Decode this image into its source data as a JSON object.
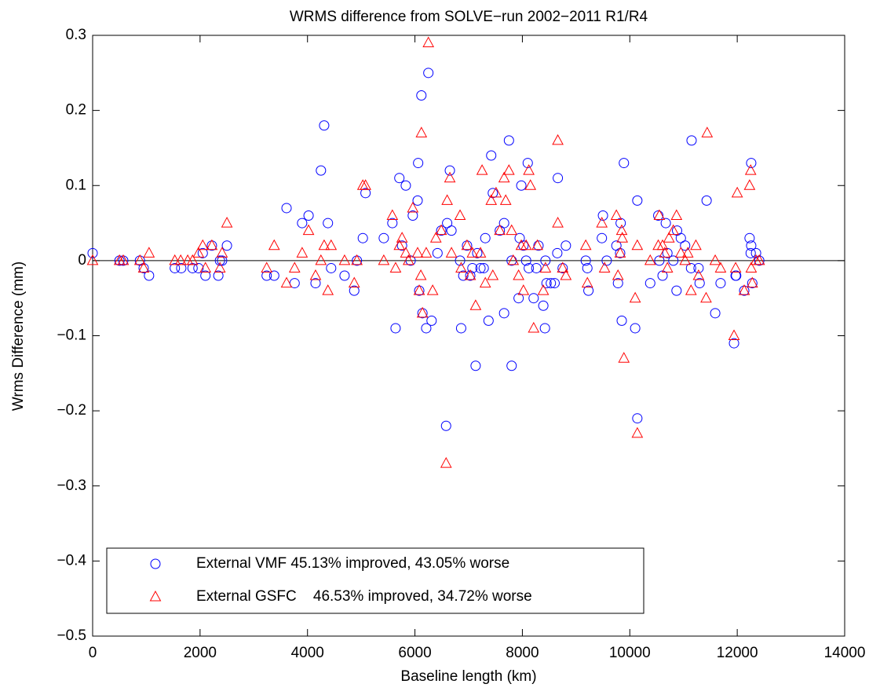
{
  "chart_data": {
    "type": "scatter",
    "title": "WRMS difference from SOLVE−run 2002−2011 R1/R4",
    "x_label": "Baseline length (km)",
    "y_label": "Wrms Difference (mm)",
    "xlim": [
      0,
      14000
    ],
    "ylim": [
      -0.5,
      0.3
    ],
    "xticks": [
      0,
      2000,
      4000,
      6000,
      8000,
      10000,
      12000,
      14000
    ],
    "yticks": [
      {
        "value": -0.5,
        "label": "−0.5"
      },
      {
        "value": -0.4,
        "label": "−0.4"
      },
      {
        "value": -0.3,
        "label": "−0.3"
      },
      {
        "value": -0.2,
        "label": "−0.2"
      },
      {
        "value": -0.1,
        "label": "−0.1"
      },
      0,
      0.1,
      0.2,
      0.3
    ],
    "hline": 0,
    "legend": "lower left",
    "grid": false,
    "series": [
      {
        "name": "External VMF 45.13% improved, 43.05% worse",
        "color": "#0000ff",
        "marker": "circle",
        "x": [
          0,
          500,
          570,
          880,
          950,
          1050,
          1530,
          1650,
          1860,
          1970,
          2050,
          2100,
          2220,
          2340,
          2370,
          2410,
          2500,
          3240,
          3380,
          3610,
          3760,
          3900,
          4020,
          4150,
          4250,
          4310,
          4380,
          4440,
          4690,
          4870,
          4920,
          5030,
          5080,
          5420,
          5580,
          5640,
          5710,
          5760,
          5830,
          5920,
          5960,
          6050,
          6060,
          6080,
          6120,
          6140,
          6210,
          6250,
          6310,
          6420,
          6490,
          6580,
          6600,
          6650,
          6680,
          6840,
          6860,
          6900,
          6970,
          7030,
          7070,
          7130,
          7160,
          7220,
          7280,
          7310,
          7370,
          7420,
          7450,
          7580,
          7660,
          7660,
          7750,
          7800,
          7800,
          7930,
          7950,
          7980,
          8020,
          8070,
          8100,
          8120,
          8210,
          8260,
          8300,
          8390,
          8420,
          8450,
          8430,
          8530,
          8600,
          8660,
          8650,
          8750,
          8810,
          9180,
          9210,
          9230,
          9480,
          9500,
          9570,
          9750,
          9780,
          9820,
          9830,
          9850,
          9890,
          10100,
          10140,
          10140,
          10380,
          10530,
          10550,
          10610,
          10670,
          10700,
          10810,
          10870,
          10880,
          10950,
          11030,
          11140,
          11150,
          11280,
          11300,
          11430,
          11590,
          11690,
          11970,
          11980,
          11940,
          12130,
          12230,
          12250,
          12260,
          12260,
          12280,
          12350,
          12410
        ],
        "values": [
          0.01,
          0,
          0,
          0,
          -0.01,
          -0.02,
          -0.01,
          -0.01,
          -0.01,
          -0.01,
          0.01,
          -0.02,
          0.02,
          -0.02,
          0,
          0,
          0.02,
          -0.02,
          -0.02,
          0.07,
          -0.03,
          0.05,
          0.06,
          -0.03,
          0.12,
          0.18,
          0.05,
          -0.01,
          -0.02,
          -0.04,
          0,
          0.03,
          0.09,
          0.03,
          0.05,
          -0.09,
          0.11,
          0.02,
          0.1,
          0,
          0.06,
          0.08,
          0.13,
          -0.04,
          0.22,
          -0.07,
          -0.09,
          0.25,
          -0.08,
          0.01,
          0.04,
          -0.22,
          0.05,
          0.12,
          0.04,
          0,
          -0.09,
          -0.02,
          0.02,
          -0.02,
          -0.01,
          -0.14,
          0.01,
          -0.01,
          -0.01,
          0.03,
          -0.08,
          0.14,
          0.09,
          0.04,
          0.05,
          -0.07,
          0.16,
          0,
          -0.14,
          -0.05,
          0.03,
          0.1,
          0.02,
          0,
          0.13,
          -0.01,
          -0.05,
          -0.01,
          0.02,
          -0.06,
          -0.09,
          -0.03,
          0,
          -0.03,
          -0.03,
          0.11,
          0.01,
          -0.01,
          0.02,
          0,
          -0.01,
          -0.04,
          0.03,
          0.06,
          0,
          0.02,
          -0.03,
          0.01,
          0.05,
          -0.08,
          0.13,
          -0.09,
          0.08,
          -0.21,
          -0.03,
          0.06,
          0,
          -0.02,
          0.05,
          0.01,
          0,
          -0.04,
          0.04,
          0.03,
          0.02,
          -0.01,
          0.16,
          -0.01,
          -0.03,
          0.08,
          -0.07,
          -0.03,
          -0.02,
          -0.02,
          -0.11,
          -0.04,
          0.03,
          0.01,
          0.02,
          0.13,
          -0.03,
          0.01,
          0
        ]
      },
      {
        "name": "External GSFC    46.53% improved, 34.72% worse",
        "color": "#ff0000",
        "marker": "triangle",
        "x": [
          0,
          500,
          570,
          880,
          950,
          1050,
          1530,
          1640,
          1770,
          1860,
          1970,
          2050,
          2100,
          2220,
          2370,
          2410,
          2500,
          3240,
          3380,
          3610,
          3760,
          3900,
          4020,
          4150,
          4250,
          4310,
          4380,
          4440,
          4690,
          4870,
          4920,
          5030,
          5080,
          5420,
          5580,
          5640,
          5710,
          5760,
          5830,
          5880,
          5960,
          6050,
          6080,
          6110,
          6120,
          6140,
          6210,
          6250,
          6330,
          6390,
          6490,
          6580,
          6600,
          6650,
          6680,
          6840,
          6860,
          6970,
          7030,
          7070,
          7130,
          7220,
          7250,
          7310,
          7420,
          7450,
          7510,
          7580,
          7660,
          7690,
          7750,
          7800,
          7830,
          7930,
          7980,
          8020,
          8070,
          8120,
          8150,
          8210,
          8280,
          8390,
          8430,
          8660,
          8660,
          8750,
          8810,
          9180,
          9210,
          9480,
          9530,
          9750,
          9780,
          9820,
          9850,
          9860,
          9890,
          10100,
          10140,
          10140,
          10380,
          10530,
          10550,
          10610,
          10650,
          10700,
          10730,
          10810,
          10870,
          10950,
          11030,
          11080,
          11140,
          11230,
          11280,
          11420,
          11440,
          11590,
          11690,
          11940,
          11970,
          12000,
          12130,
          12230,
          12250,
          12260,
          12280,
          12350,
          12410
        ],
        "values": [
          0,
          0,
          0,
          0,
          -0.01,
          0.01,
          0,
          0,
          0,
          0,
          0.01,
          0.02,
          -0.01,
          0.02,
          -0.01,
          0.01,
          0.05,
          -0.01,
          0.02,
          -0.03,
          -0.01,
          0.01,
          0.04,
          -0.02,
          0,
          0.02,
          -0.04,
          0.02,
          0,
          -0.03,
          0,
          0.1,
          0.1,
          0,
          0.06,
          -0.01,
          0.02,
          0.03,
          0.01,
          0,
          0.07,
          0.01,
          -0.04,
          -0.02,
          0.17,
          -0.07,
          0.01,
          0.29,
          -0.04,
          0.03,
          0.04,
          -0.27,
          0.08,
          0.11,
          0.01,
          0.06,
          -0.01,
          0.02,
          -0.02,
          0.01,
          -0.06,
          0.01,
          0.12,
          -0.03,
          0.08,
          -0.02,
          0.09,
          0.04,
          0.11,
          0.08,
          0.12,
          0.04,
          0,
          -0.02,
          0.02,
          -0.04,
          0.02,
          0.12,
          0.1,
          -0.09,
          0.02,
          -0.04,
          -0.01,
          0.16,
          0.05,
          -0.01,
          -0.02,
          0.02,
          -0.03,
          0.05,
          -0.01,
          0.06,
          -0.02,
          0.01,
          0.04,
          0.03,
          -0.13,
          -0.05,
          0.02,
          -0.23,
          0,
          0.02,
          0.06,
          0.02,
          0.01,
          -0.01,
          0.03,
          0.04,
          0.06,
          0.01,
          0,
          0.01,
          -0.04,
          0.02,
          -0.02,
          -0.05,
          0.17,
          0,
          -0.01,
          -0.1,
          -0.01,
          0.09,
          -0.04,
          0.1,
          0.12,
          -0.01,
          -0.03,
          0,
          0
        ]
      }
    ]
  }
}
